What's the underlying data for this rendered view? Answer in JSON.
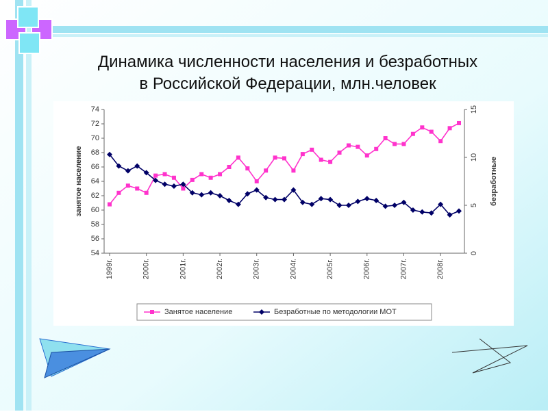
{
  "chart_data": {
    "type": "line",
    "title_lines": [
      "Динамика численности населения и безработных",
      "в Российской Федерации, млн.человек"
    ],
    "y_label": "занятое население",
    "y2_label": "безработные",
    "categories": [
      "1999г.",
      null,
      null,
      null,
      "2000г.",
      null,
      null,
      null,
      "2001г.",
      null,
      null,
      null,
      "2002г.",
      null,
      null,
      null,
      "2003г.",
      null,
      null,
      null,
      "2004г.",
      null,
      null,
      null,
      "2005г.",
      null,
      null,
      null,
      "2006г.",
      null,
      null,
      null,
      "2007г.",
      null,
      null,
      null,
      "2008г.",
      null,
      null
    ],
    "series": [
      {
        "name": "Занятое население",
        "color": "#ff33cc",
        "marker": "square",
        "values": [
          60.8,
          62.4,
          63.4,
          63.0,
          62.4,
          64.8,
          65.0,
          64.5,
          63.0,
          64.2,
          65.0,
          64.5,
          65.0,
          66.0,
          67.3,
          65.8,
          64.0,
          65.5,
          67.3,
          67.2,
          65.5,
          67.8,
          68.4,
          67.0,
          66.7,
          68.0,
          69.0,
          68.8,
          67.6,
          68.5,
          70.0,
          69.2,
          69.2,
          70.6,
          71.5,
          70.9,
          69.6,
          71.4,
          72.1
        ]
      },
      {
        "name": "Безработные по методологии МОТ",
        "color": "#000066",
        "marker": "diamond",
        "axis": "y2",
        "values": [
          10.3,
          9.1,
          8.6,
          9.1,
          8.4,
          7.6,
          7.2,
          7.0,
          7.2,
          6.3,
          6.1,
          6.3,
          6.0,
          5.5,
          5.1,
          6.2,
          6.6,
          5.8,
          5.6,
          5.6,
          6.6,
          5.3,
          5.1,
          5.7,
          5.6,
          5.0,
          5.0,
          5.4,
          5.7,
          5.5,
          4.9,
          5.0,
          5.3,
          4.5,
          4.3,
          4.2,
          5.1,
          4.0,
          4.4
        ]
      }
    ],
    "ylim": [
      54,
      74
    ],
    "yticks": [
      54,
      56,
      58,
      60,
      62,
      64,
      66,
      68,
      70,
      72,
      74
    ],
    "y2lim": [
      0,
      15
    ],
    "y2ticks": [
      0,
      5,
      10,
      15
    ],
    "legend": "bottom"
  }
}
